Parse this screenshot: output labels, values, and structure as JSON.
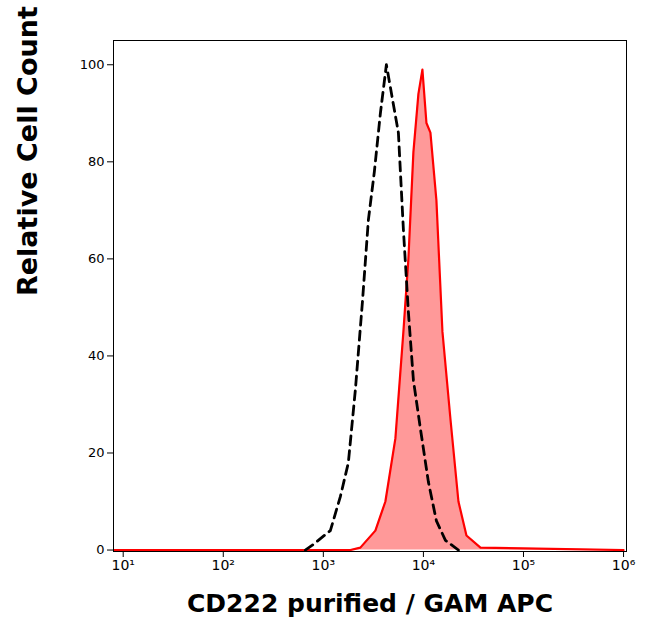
{
  "chart_data": {
    "type": "line",
    "x_label": "CD222 purified / GAM APC",
    "y_label": "Relative Cell Count",
    "log": "x",
    "xlim": [
      8,
      1070000
    ],
    "ylim": [
      -0.3,
      105
    ],
    "xticks": [
      {
        "value": 10,
        "label": "10¹"
      },
      {
        "value": 100,
        "label": "10²"
      },
      {
        "value": 1000,
        "label": "10³"
      },
      {
        "value": 10000,
        "label": "10⁴"
      },
      {
        "value": 100000,
        "label": "10⁵"
      },
      {
        "value": 1000000,
        "label": "10⁶"
      }
    ],
    "yticks": [
      0,
      20,
      40,
      60,
      80,
      100
    ],
    "grid": false,
    "series": [
      {
        "type": "area",
        "color": "#ff0000",
        "line_style": "solid",
        "x": [
          8,
          1862,
          2344,
          3311,
          4169,
          5248,
          6310,
          7079,
          7943,
          8913,
          9772,
          10720,
          11750,
          13490,
          15490,
          18620,
          22390,
          26920,
          37150,
          1000000
        ],
        "values": [
          0,
          0,
          0.5,
          4,
          10,
          23,
          45,
          60,
          82,
          94,
          99,
          88,
          86,
          72,
          45,
          27,
          10,
          3,
          0.5,
          0
        ]
      },
      {
        "type": "line",
        "color": "#000000",
        "line_style": "dashed",
        "x": [
          661,
          776,
          1175,
          1479,
          1778,
          2089,
          2455,
          2818,
          3236,
          3715,
          4266,
          4898,
          5623,
          6310,
          7079,
          7943,
          9333,
          11220,
          13490,
          16600,
          22390
        ],
        "values": [
          0,
          1,
          4,
          11,
          18,
          33,
          51,
          68,
          78,
          90,
          100,
          93,
          86,
          66,
          49,
          35,
          25,
          14,
          6,
          2,
          0
        ]
      }
    ]
  }
}
